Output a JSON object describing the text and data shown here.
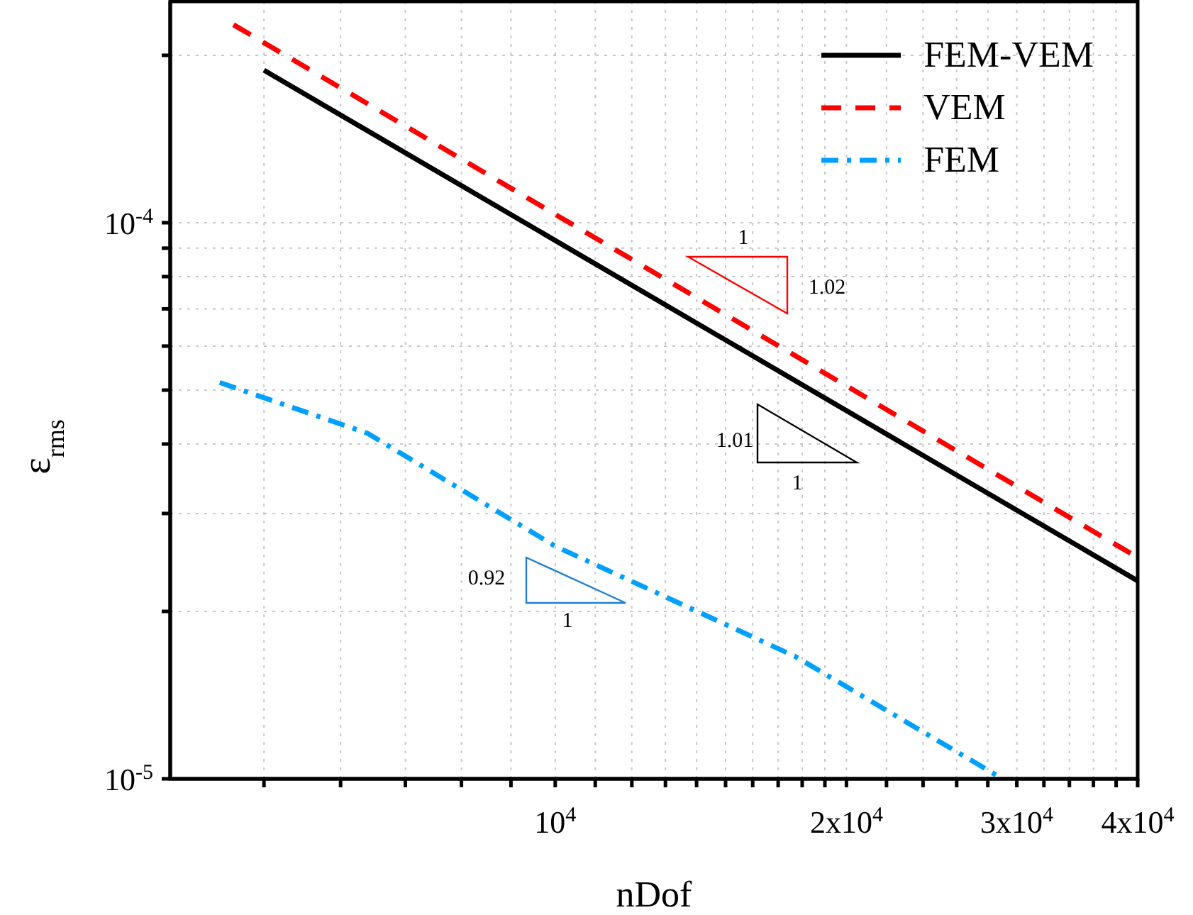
{
  "chart_data": {
    "type": "line",
    "xlabel": "nDof",
    "ylabel": "ε$_{rms}$",
    "log": "xy",
    "grid": true,
    "legend": "top right",
    "marker": "none",
    "xlim": [
      4000,
      40000
    ],
    "ylim": [
      1e-05,
      0.00025
    ],
    "xticks": [
      {
        "value": 5000,
        "label": null
      },
      {
        "value": 6000,
        "label": null
      },
      {
        "value": 7000,
        "label": null
      },
      {
        "value": 8000,
        "label": null
      },
      {
        "value": 9000,
        "label": null
      },
      {
        "value": 10000,
        "label": "10$^{4}$"
      },
      {
        "value": 11000,
        "label": null
      },
      {
        "value": 12000,
        "label": null
      },
      {
        "value": 13000,
        "label": null
      },
      {
        "value": 14000,
        "label": null
      },
      {
        "value": 15000,
        "label": null
      },
      {
        "value": 16000,
        "label": null
      },
      {
        "value": 17000,
        "label": null
      },
      {
        "value": 18000,
        "label": null
      },
      {
        "value": 19000,
        "label": null
      },
      {
        "value": 20000,
        "label": "2x10$^{4}$"
      },
      {
        "value": 22000,
        "label": null
      },
      {
        "value": 24000,
        "label": null
      },
      {
        "value": 26000,
        "label": null
      },
      {
        "value": 28000,
        "label": null
      },
      {
        "value": 30000,
        "label": "3x10$^{4}$"
      },
      {
        "value": 32000,
        "label": null
      },
      {
        "value": 34000,
        "label": null
      },
      {
        "value": 36000,
        "label": null
      },
      {
        "value": 38000,
        "label": null
      },
      {
        "value": 40000,
        "label": "4x10$^{4}$"
      }
    ],
    "yticks": [
      {
        "value": 1e-05,
        "label": "10$^{-5}$"
      },
      {
        "value": 2e-05,
        "label": null
      },
      {
        "value": 3e-05,
        "label": null
      },
      {
        "value": 4e-05,
        "label": null
      },
      {
        "value": 5e-05,
        "label": null
      },
      {
        "value": 6e-05,
        "label": null
      },
      {
        "value": 7e-05,
        "label": null
      },
      {
        "value": 8e-05,
        "label": null
      },
      {
        "value": 9e-05,
        "label": null
      },
      {
        "value": 0.0001,
        "label": "10$^{-4}$"
      },
      {
        "value": 0.0002,
        "label": null
      }
    ],
    "series": [
      {
        "name": "FEM-VEM",
        "color": "#000000",
        "line_style": "solid",
        "x": [
          5000,
          40000
        ],
        "values": [
          0.000188,
          2.27e-05
        ]
      },
      {
        "name": "VEM",
        "color": "#ff0000",
        "line_style": "dashed",
        "x": [
          4650,
          40000
        ],
        "values": [
          0.000227,
          2.5e-05
        ]
      },
      {
        "name": "FEM",
        "color": "#00a0ff",
        "line_style": "dashdot",
        "x": [
          4500,
          6400,
          10000,
          17700,
          29000
        ],
        "values": [
          5.16e-05,
          4.18e-05,
          2.62e-05,
          1.66e-05,
          1e-05
        ]
      }
    ],
    "annotations": [
      "1",
      "1.02",
      "1.01",
      "1",
      "0.92",
      "1"
    ]
  }
}
